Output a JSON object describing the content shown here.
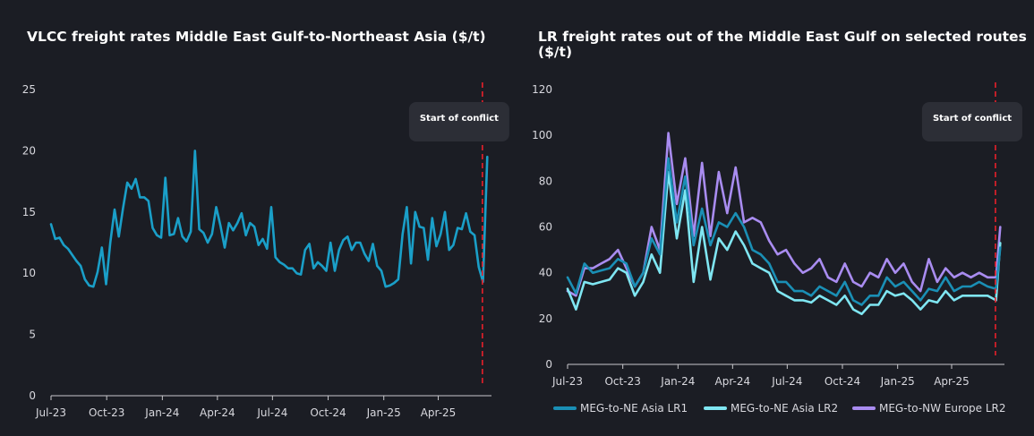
{
  "chart_data": [
    {
      "type": "line",
      "title": "VLCC freight rates Middle East Gulf-to-Northeast Asia ($/t)",
      "xlabel": "",
      "ylabel": "",
      "ylim": [
        0,
        25
      ],
      "yticks": [
        0,
        5,
        10,
        15,
        20,
        25
      ],
      "xticks": [
        "Jul-23",
        "Oct-23",
        "Jan-24",
        "Apr-24",
        "Jul-24",
        "Oct-24",
        "Jan-25",
        "Apr-25"
      ],
      "grid": false,
      "annotation": {
        "label": "Start of conflict",
        "x": "2025-06-13"
      },
      "series": [
        {
          "color": "#1a9fc8",
          "x": [
            "2023-07-01",
            "2023-07-08",
            "2023-07-15",
            "2023-07-22",
            "2023-07-29",
            "2023-08-05",
            "2023-08-12",
            "2023-08-19",
            "2023-08-26",
            "2023-09-02",
            "2023-09-09",
            "2023-09-16",
            "2023-09-23",
            "2023-09-30",
            "2023-10-07",
            "2023-10-14",
            "2023-10-21",
            "2023-10-28",
            "2023-11-04",
            "2023-11-11",
            "2023-11-18",
            "2023-11-25",
            "2023-12-02",
            "2023-12-09",
            "2023-12-16",
            "2023-12-23",
            "2023-12-30",
            "2024-01-06",
            "2024-01-13",
            "2024-01-20",
            "2024-01-27",
            "2024-02-03",
            "2024-02-10",
            "2024-02-17",
            "2024-02-24",
            "2024-03-02",
            "2024-03-09",
            "2024-03-16",
            "2024-03-23",
            "2024-03-30",
            "2024-04-06",
            "2024-04-13",
            "2024-04-20",
            "2024-04-27",
            "2024-05-04",
            "2024-05-11",
            "2024-05-18",
            "2024-05-25",
            "2024-06-01",
            "2024-06-08",
            "2024-06-15",
            "2024-06-22",
            "2024-06-29",
            "2024-07-06",
            "2024-07-13",
            "2024-07-20",
            "2024-07-27",
            "2024-08-03",
            "2024-08-10",
            "2024-08-17",
            "2024-08-24",
            "2024-08-31",
            "2024-09-07",
            "2024-09-14",
            "2024-09-21",
            "2024-09-28",
            "2024-10-05",
            "2024-10-12",
            "2024-10-19",
            "2024-10-26",
            "2024-11-02",
            "2024-11-09",
            "2024-11-16",
            "2024-11-23",
            "2024-11-30",
            "2024-12-07",
            "2024-12-14",
            "2024-12-21",
            "2024-12-28",
            "2025-01-04",
            "2025-01-11",
            "2025-01-18",
            "2025-01-25",
            "2025-02-01",
            "2025-02-08",
            "2025-02-15",
            "2025-02-22",
            "2025-03-01",
            "2025-03-08",
            "2025-03-15",
            "2025-03-22",
            "2025-03-29",
            "2025-04-05",
            "2025-04-12",
            "2025-04-19",
            "2025-04-26",
            "2025-05-03",
            "2025-05-10",
            "2025-05-17",
            "2025-05-24",
            "2025-05-31",
            "2025-06-07",
            "2025-06-14",
            "2025-06-21"
          ],
          "values": [
            14.0,
            12.8,
            12.9,
            12.3,
            12.0,
            11.5,
            11.0,
            10.6,
            9.5,
            9.0,
            8.9,
            10.1,
            12.1,
            9.1,
            12.5,
            15.2,
            13.0,
            15.3,
            17.4,
            16.9,
            17.7,
            16.2,
            16.2,
            15.9,
            13.7,
            13.1,
            12.9,
            17.8,
            13.1,
            13.2,
            14.5,
            13.0,
            12.6,
            13.4,
            20.0,
            13.6,
            13.3,
            12.5,
            13.2,
            15.4,
            13.9,
            12.1,
            14.1,
            13.5,
            14.1,
            14.9,
            13.1,
            14.1,
            13.8,
            12.3,
            12.8,
            12.0,
            15.4,
            11.3,
            10.9,
            10.7,
            10.4,
            10.4,
            10.0,
            9.9,
            11.9,
            12.4,
            10.4,
            10.9,
            10.6,
            10.2,
            12.5,
            10.2,
            11.9,
            12.7,
            13.0,
            11.9,
            12.5,
            12.5,
            11.6,
            11.0,
            12.4,
            10.6,
            10.2,
            8.9,
            9.0,
            9.2,
            9.5,
            13.2,
            15.4,
            10.8,
            15.0,
            13.8,
            13.7,
            11.1,
            14.5,
            12.2,
            13.2,
            15.0,
            11.9,
            12.3,
            13.7,
            13.6,
            14.9,
            13.4,
            13.1,
            10.5,
            9.3,
            19.5
          ]
        }
      ]
    },
    {
      "type": "line",
      "title": "LR freight rates out of the Middle East Gulf on selected routes ($/t)",
      "xlabel": "",
      "ylabel": "",
      "ylim": [
        0,
        120
      ],
      "yticks": [
        0,
        20,
        40,
        60,
        80,
        100,
        120
      ],
      "xticks": [
        "Jul-23",
        "Oct-23",
        "Jan-24",
        "Apr-24",
        "Jul-24",
        "Oct-24",
        "Jan-25",
        "Apr-25"
      ],
      "grid": false,
      "legend": "bottom",
      "annotation": {
        "label": "Start of conflict",
        "x": "2025-06-13"
      },
      "series": [
        {
          "name": "MEG-to-NE Asia LR1",
          "color": "#1a8fb5",
          "x": [
            "2023-07-01",
            "2023-07-15",
            "2023-07-29",
            "2023-08-12",
            "2023-08-26",
            "2023-09-09",
            "2023-09-23",
            "2023-10-07",
            "2023-10-21",
            "2023-11-04",
            "2023-11-18",
            "2023-12-02",
            "2023-12-16",
            "2023-12-30",
            "2024-01-13",
            "2024-01-27",
            "2024-02-10",
            "2024-02-24",
            "2024-03-09",
            "2024-03-23",
            "2024-04-06",
            "2024-04-20",
            "2024-05-04",
            "2024-05-18",
            "2024-06-01",
            "2024-06-15",
            "2024-06-29",
            "2024-07-13",
            "2024-07-27",
            "2024-08-10",
            "2024-08-24",
            "2024-09-07",
            "2024-09-21",
            "2024-10-05",
            "2024-10-19",
            "2024-11-02",
            "2024-11-16",
            "2024-11-30",
            "2024-12-14",
            "2024-12-28",
            "2025-01-11",
            "2025-01-25",
            "2025-02-08",
            "2025-02-22",
            "2025-03-08",
            "2025-03-22",
            "2025-04-05",
            "2025-04-19",
            "2025-05-03",
            "2025-05-17",
            "2025-05-31",
            "2025-06-14",
            "2025-06-21"
          ],
          "values": [
            38,
            31,
            44,
            40,
            41,
            42,
            46,
            44,
            34,
            40,
            55,
            48,
            90,
            62,
            82,
            52,
            68,
            52,
            62,
            60,
            66,
            60,
            50,
            48,
            44,
            36,
            36,
            32,
            32,
            30,
            34,
            32,
            30,
            36,
            28,
            26,
            30,
            30,
            38,
            34,
            36,
            32,
            28,
            33,
            32,
            38,
            32,
            34,
            34,
            36,
            34,
            33,
            51
          ]
        },
        {
          "name": "MEG-to-NE Asia LR2",
          "color": "#7fe6f2",
          "x": [
            "2023-07-01",
            "2023-07-15",
            "2023-07-29",
            "2023-08-12",
            "2023-08-26",
            "2023-09-09",
            "2023-09-23",
            "2023-10-07",
            "2023-10-21",
            "2023-11-04",
            "2023-11-18",
            "2023-12-02",
            "2023-12-16",
            "2023-12-30",
            "2024-01-13",
            "2024-01-27",
            "2024-02-10",
            "2024-02-24",
            "2024-03-09",
            "2024-03-23",
            "2024-04-06",
            "2024-04-20",
            "2024-05-04",
            "2024-05-18",
            "2024-06-01",
            "2024-06-15",
            "2024-06-29",
            "2024-07-13",
            "2024-07-27",
            "2024-08-10",
            "2024-08-24",
            "2024-09-07",
            "2024-09-21",
            "2024-10-05",
            "2024-10-19",
            "2024-11-02",
            "2024-11-16",
            "2024-11-30",
            "2024-12-14",
            "2024-12-28",
            "2025-01-11",
            "2025-01-25",
            "2025-02-08",
            "2025-02-22",
            "2025-03-08",
            "2025-03-22",
            "2025-04-05",
            "2025-04-19",
            "2025-05-03",
            "2025-05-17",
            "2025-05-31",
            "2025-06-14",
            "2025-06-21"
          ],
          "values": [
            33,
            24,
            36,
            35,
            36,
            37,
            42,
            40,
            30,
            36,
            48,
            40,
            84,
            55,
            76,
            36,
            60,
            37,
            55,
            50,
            58,
            52,
            44,
            42,
            40,
            32,
            30,
            28,
            28,
            27,
            30,
            28,
            26,
            30,
            24,
            22,
            26,
            26,
            32,
            30,
            31,
            28,
            24,
            28,
            27,
            32,
            28,
            30,
            30,
            30,
            30,
            28,
            53
          ]
        },
        {
          "name": "MEG-to-NW Europe LR2",
          "color": "#a98cf0",
          "x": [
            "2023-07-01",
            "2023-07-15",
            "2023-07-29",
            "2023-08-12",
            "2023-08-26",
            "2023-09-09",
            "2023-09-23",
            "2023-10-07",
            "2023-10-21",
            "2023-11-04",
            "2023-11-18",
            "2023-12-02",
            "2023-12-16",
            "2023-12-30",
            "2024-01-13",
            "2024-01-27",
            "2024-02-10",
            "2024-02-24",
            "2024-03-09",
            "2024-03-23",
            "2024-04-06",
            "2024-04-20",
            "2024-05-04",
            "2024-05-18",
            "2024-06-01",
            "2024-06-15",
            "2024-06-29",
            "2024-07-13",
            "2024-07-27",
            "2024-08-10",
            "2024-08-24",
            "2024-09-07",
            "2024-09-21",
            "2024-10-05",
            "2024-10-19",
            "2024-11-02",
            "2024-11-16",
            "2024-11-30",
            "2024-12-14",
            "2024-12-28",
            "2025-01-11",
            "2025-01-25",
            "2025-02-08",
            "2025-02-22",
            "2025-03-08",
            "2025-03-22",
            "2025-04-05",
            "2025-04-19",
            "2025-05-03",
            "2025-05-17",
            "2025-05-31",
            "2025-06-14",
            "2025-06-21"
          ],
          "values": [
            32,
            30,
            42,
            42,
            44,
            46,
            50,
            42,
            34,
            40,
            60,
            50,
            101,
            70,
            90,
            56,
            88,
            56,
            84,
            66,
            86,
            62,
            64,
            62,
            54,
            48,
            50,
            44,
            40,
            42,
            46,
            38,
            36,
            44,
            36,
            34,
            40,
            38,
            46,
            40,
            44,
            36,
            32,
            46,
            36,
            42,
            38,
            40,
            38,
            40,
            38,
            38,
            60
          ]
        }
      ]
    }
  ]
}
